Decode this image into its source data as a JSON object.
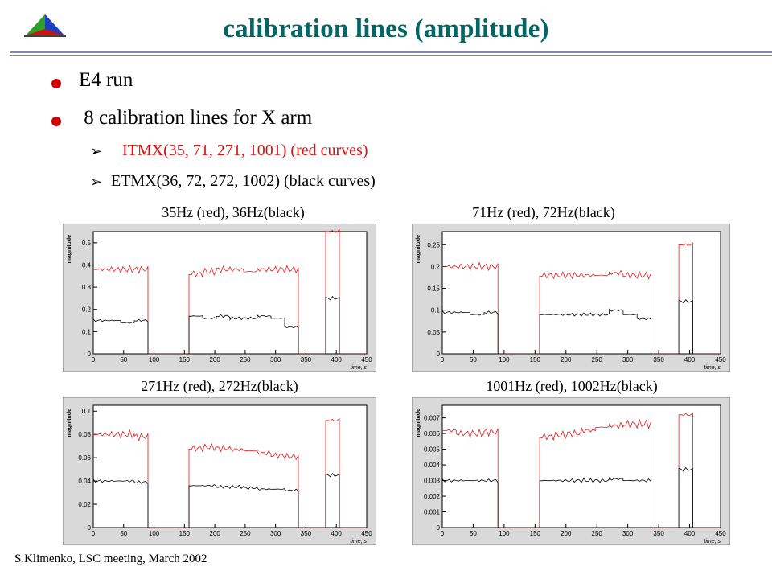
{
  "title": "calibration lines (amplitude)",
  "bullets": [
    "E4 run",
    " 8 calibration lines for X arm"
  ],
  "subbullets": [
    {
      "text": "ITMX(35, 71, 271, 1001) (red curves)",
      "color": "#dd1111"
    },
    {
      "text": "ETMX(36, 72, 272, 1002) (black curves)",
      "color": "#000000"
    }
  ],
  "footer": "S.Klimenko, LSC meeting, March 2002",
  "colors": {
    "title": "#006666",
    "red_series": "#e41a1c",
    "black_series": "#000000",
    "plot_bg": "#d9d9d9"
  },
  "chart_data": [
    {
      "type": "line",
      "title": "35Hz (red), 36Hz(black)",
      "xlabel": "time, s",
      "ylabel": "magnitude",
      "xlim": [
        0,
        450
      ],
      "ylim": [
        0,
        0.55
      ],
      "xticks": [
        "0",
        "50",
        "100",
        "150",
        "200",
        "250",
        "300",
        "350",
        "400",
        "450"
      ],
      "yticks": [
        "0",
        "0.1",
        "0.2",
        "0.3",
        "0.4",
        "0.5"
      ],
      "series": [
        {
          "color": "#e41a1c",
          "values": [
            0.38,
            0.38,
            0.38,
            0.38,
            0.0,
            0.0,
            0.0,
            0.36,
            0.37,
            0.38,
            0.38,
            0.37,
            0.38,
            0.38,
            0.38,
            0.0,
            0.0,
            0.55,
            0.0,
            0.0
          ]
        },
        {
          "color": "#000000",
          "values": [
            0.15,
            0.15,
            0.14,
            0.15,
            0.0,
            0.0,
            0.0,
            0.17,
            0.16,
            0.17,
            0.16,
            0.16,
            0.17,
            0.16,
            0.12,
            0.0,
            0.0,
            0.25,
            0.0,
            0.0
          ]
        }
      ]
    },
    {
      "type": "line",
      "title": "71Hz (red), 72Hz(black)",
      "xlabel": "time, s",
      "ylabel": "magnitude",
      "xlim": [
        0,
        450
      ],
      "ylim": [
        0,
        0.28
      ],
      "xticks": [
        "0",
        "50",
        "100",
        "150",
        "200",
        "250",
        "300",
        "350",
        "400",
        "450"
      ],
      "yticks": [
        "0",
        "0.05",
        "0.1",
        "0.15",
        "0.2",
        "0.25"
      ],
      "series": [
        {
          "color": "#e41a1c",
          "values": [
            0.2,
            0.2,
            0.2,
            0.2,
            0.0,
            0.0,
            0.0,
            0.18,
            0.18,
            0.18,
            0.18,
            0.18,
            0.185,
            0.18,
            0.18,
            0.0,
            0.0,
            0.25,
            0.0,
            0.0
          ]
        },
        {
          "color": "#000000",
          "values": [
            0.095,
            0.095,
            0.09,
            0.095,
            0.0,
            0.0,
            0.0,
            0.09,
            0.09,
            0.09,
            0.09,
            0.09,
            0.1,
            0.09,
            0.08,
            0.0,
            0.0,
            0.12,
            0.0,
            0.0
          ]
        }
      ]
    },
    {
      "type": "line",
      "title": "271Hz (red), 272Hz(black)",
      "xlabel": "time, s",
      "ylabel": "magnitude",
      "xlim": [
        0,
        450
      ],
      "ylim": [
        0,
        0.105
      ],
      "xticks": [
        "0",
        "50",
        "100",
        "150",
        "200",
        "250",
        "300",
        "350",
        "400",
        "450"
      ],
      "yticks": [
        "0",
        "0.02",
        "0.04",
        "0.06",
        "0.08",
        "0.1"
      ],
      "series": [
        {
          "color": "#e41a1c",
          "values": [
            0.08,
            0.08,
            0.08,
            0.078,
            0.0,
            0.0,
            0.0,
            0.068,
            0.069,
            0.068,
            0.067,
            0.066,
            0.064,
            0.062,
            0.061,
            0.0,
            0.0,
            0.092,
            0.0,
            0.0
          ]
        },
        {
          "color": "#000000",
          "values": [
            0.04,
            0.04,
            0.04,
            0.039,
            0.0,
            0.0,
            0.0,
            0.036,
            0.036,
            0.035,
            0.035,
            0.034,
            0.033,
            0.033,
            0.032,
            0.0,
            0.0,
            0.045,
            0.0,
            0.0
          ]
        }
      ]
    },
    {
      "type": "line",
      "title": "1001Hz (red), 1002Hz(black)",
      "xlabel": "time, s",
      "ylabel": "magnitude",
      "xlim": [
        0,
        450
      ],
      "ylim": [
        0,
        0.0078
      ],
      "xticks": [
        "0",
        "50",
        "100",
        "150",
        "200",
        "250",
        "300",
        "350",
        "400",
        "450"
      ],
      "yticks": [
        "0",
        "0.001",
        "0.002",
        "0.003",
        "0.004",
        "0.005",
        "0.006",
        "0.007"
      ],
      "series": [
        {
          "color": "#e41a1c",
          "values": [
            0.0062,
            0.006,
            0.006,
            0.0061,
            0.0,
            0.0,
            0.0,
            0.0058,
            0.0059,
            0.006,
            0.0062,
            0.0064,
            0.0065,
            0.0066,
            0.0066,
            0.0,
            0.0,
            0.0072,
            0.0,
            0.0
          ]
        },
        {
          "color": "#000000",
          "values": [
            0.003,
            0.003,
            0.003,
            0.003,
            0.0,
            0.0,
            0.0,
            0.003,
            0.003,
            0.003,
            0.003,
            0.003,
            0.0031,
            0.003,
            0.003,
            0.0,
            0.0,
            0.0037,
            0.0,
            0.0
          ]
        }
      ]
    }
  ]
}
